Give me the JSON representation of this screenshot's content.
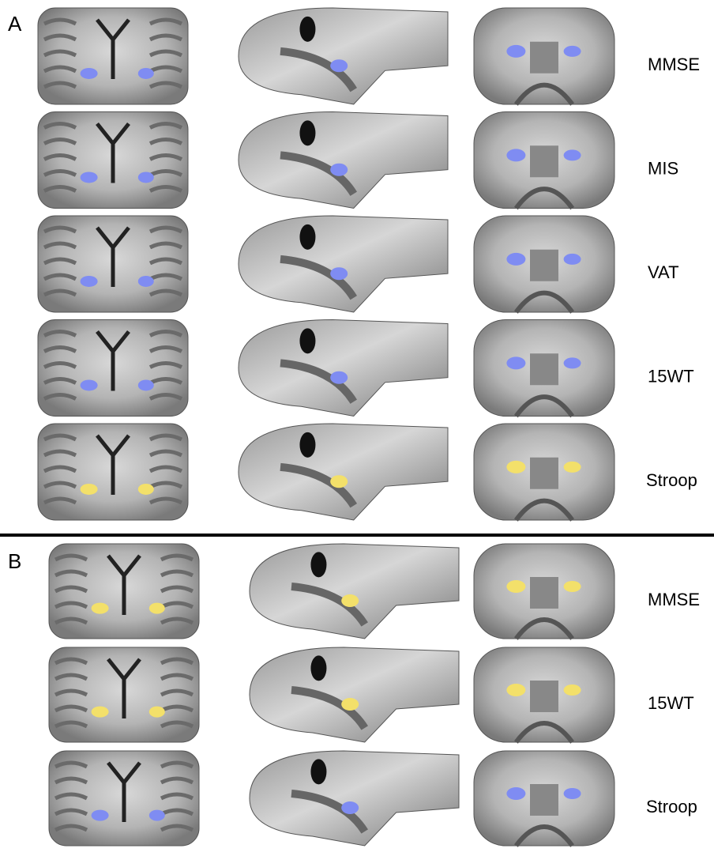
{
  "panels": [
    {
      "label": "A",
      "rows": [
        "MMSE",
        "MIS",
        "VAT",
        "15WT",
        "Stroop"
      ]
    },
    {
      "label": "B",
      "rows": [
        "MMSE",
        "15WT",
        "Stroop"
      ]
    }
  ]
}
